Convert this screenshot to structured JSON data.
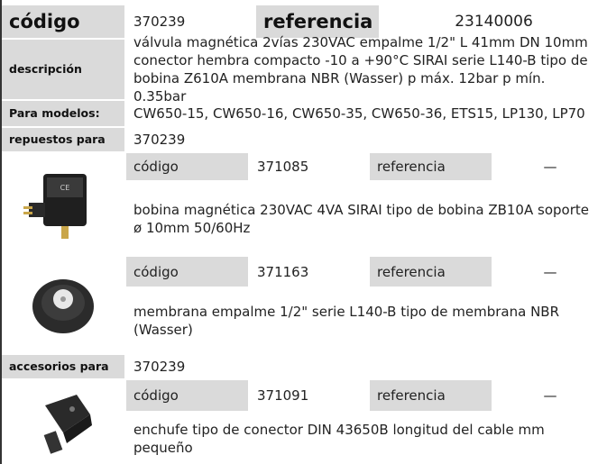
{
  "header": {
    "codigo_label": "código",
    "codigo": "370239",
    "referencia_label": "referencia",
    "referencia": "23140006"
  },
  "descripcion": {
    "label": "descripción",
    "text": "válvula magnética  2vías 230VAC empalme 1/2\" L 41mm DN 10mm conector hembra compacto -10 a +90°C SIRAI serie L140-B tipo de bobina Z610A membrana NBR (Wasser) p máx. 12bar p mín. 0.35bar"
  },
  "modelos": {
    "label": "Para modelos:",
    "text": "CW650-15, CW650-16, CW650-35, CW650-36, ETS15, LP130, LP70"
  },
  "spares": {
    "label": "repuestos para",
    "code": "370239",
    "items": [
      {
        "code_label": "código",
        "code": "371085",
        "ref_label": "referencia",
        "ref": "—",
        "text": "bobina magnética  230VAC 4VA SIRAI tipo de bobina ZB10A soporte ø 10mm 50/60Hz"
      },
      {
        "code_label": "código",
        "code": "371163",
        "ref_label": "referencia",
        "ref": "—",
        "text": "membrana  empalme 1/2\" serie L140-B tipo de membrana NBR (Wasser)"
      }
    ]
  },
  "accessories": {
    "label": "accesorios para",
    "code": "370239",
    "items": [
      {
        "code_label": "código",
        "code": "371091",
        "ref_label": "referencia",
        "ref": "—",
        "text": "enchufe  tipo de conector DIN 43650B longitud del cable mm pequeño"
      }
    ]
  }
}
